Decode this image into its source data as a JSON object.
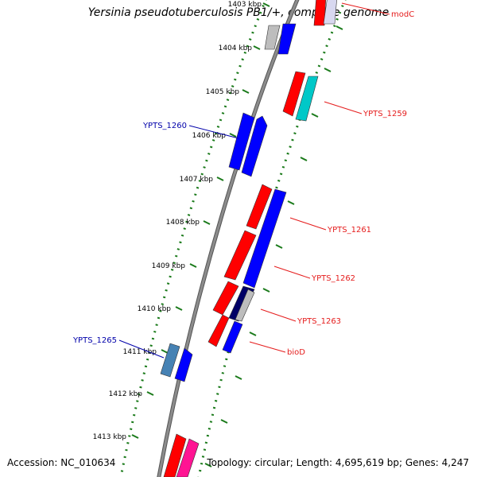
{
  "title": "Yersinia pseudotuberculosis PB1/+, complete genome",
  "footer": {
    "accession": "Accession: NC_010634",
    "summary": "Topology: circular; Length: 4,695,619 bp; Genes: 4,247"
  },
  "ticks": [
    {
      "label": "1403 kbp"
    },
    {
      "label": "1404 kbp"
    },
    {
      "label": "1405 kbp"
    },
    {
      "label": "1406 kbp"
    },
    {
      "label": "1407 kbp"
    },
    {
      "label": "1408 kbp"
    },
    {
      "label": "1409 kbp"
    },
    {
      "label": "1410 kbp"
    },
    {
      "label": "1411 kbp"
    },
    {
      "label": "1412 kbp"
    },
    {
      "label": "1413 kbp"
    }
  ],
  "genes": [
    {
      "name": "modC",
      "strand": "forward",
      "color": "#e51c1c"
    },
    {
      "name": "YPTS_1259",
      "strand": "forward",
      "color": "#e51c1c"
    },
    {
      "name": "YPTS_1260",
      "strand": "reverse",
      "color": "#0000aa"
    },
    {
      "name": "YPTS_1261",
      "strand": "forward",
      "color": "#e51c1c"
    },
    {
      "name": "YPTS_1262",
      "strand": "forward",
      "color": "#e51c1c"
    },
    {
      "name": "YPTS_1263",
      "strand": "forward",
      "color": "#e51c1c"
    },
    {
      "name": "bioD",
      "strand": "forward",
      "color": "#e51c1c"
    },
    {
      "name": "YPTS_1265",
      "strand": "reverse",
      "color": "#0000aa"
    }
  ],
  "colors": {
    "backbone": "#8c8c8c",
    "ring_dots": "#1a7a1a",
    "cds_red": "#ff0000",
    "cds_blue": "#0000ff",
    "cds_cyan": "#00c8c8",
    "cds_gray": "#bdbdbd",
    "cds_steel": "#4682b4",
    "cds_pink": "#ff1493",
    "cds_navy": "#000066"
  }
}
